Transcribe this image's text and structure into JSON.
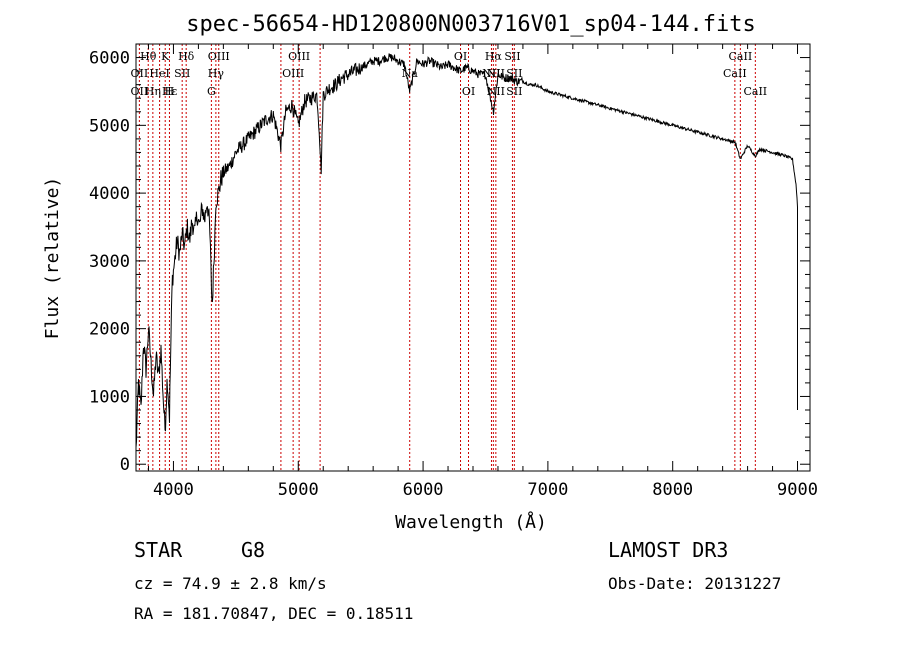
{
  "chart_data": {
    "type": "line",
    "title": "spec-56654-HD120800N003716V01_sp04-144.fits",
    "xlabel": "Wavelength (Å)",
    "ylabel": "Flux (relative)",
    "xlim": [
      3700,
      9100
    ],
    "ylim": [
      -100,
      6200
    ],
    "xticks": [
      4000,
      5000,
      6000,
      7000,
      8000,
      9000
    ],
    "yticks": [
      0,
      1000,
      2000,
      3000,
      4000,
      5000,
      6000
    ],
    "x_minor_step": 200,
    "y_minor_step": 200,
    "series": [
      {
        "name": "flux",
        "x": [
          3700,
          3720,
          3740,
          3760,
          3780,
          3800,
          3820,
          3840,
          3860,
          3880,
          3900,
          3920,
          3933,
          3950,
          3968,
          3990,
          4010,
          4030,
          4050,
          4070,
          4090,
          4110,
          4130,
          4150,
          4170,
          4190,
          4210,
          4230,
          4250,
          4270,
          4290,
          4310,
          4330,
          4340,
          4360,
          4380,
          4400,
          4450,
          4500,
          4550,
          4600,
          4650,
          4700,
          4750,
          4800,
          4861,
          4900,
          4950,
          5000,
          5050,
          5100,
          5150,
          5170,
          5183,
          5200,
          5250,
          5300,
          5350,
          5400,
          5450,
          5500,
          5550,
          5600,
          5650,
          5700,
          5750,
          5800,
          5850,
          5893,
          5950,
          6000,
          6050,
          6100,
          6150,
          6200,
          6250,
          6300,
          6350,
          6400,
          6450,
          6500,
          6563,
          6600,
          6650,
          6700,
          6750,
          6800,
          6850,
          6900,
          6950,
          7000,
          7100,
          7200,
          7300,
          7400,
          7500,
          7600,
          7700,
          7800,
          7900,
          8000,
          8100,
          8200,
          8300,
          8400,
          8500,
          8542,
          8600,
          8662,
          8700,
          8800,
          8900,
          8960,
          8990,
          9000
        ],
        "y": [
          200,
          1200,
          800,
          1800,
          1400,
          2000,
          1500,
          1000,
          1600,
          1300,
          1700,
          900,
          500,
          1300,
          700,
          2700,
          3000,
          3300,
          3100,
          3400,
          3200,
          3500,
          3300,
          3600,
          3400,
          3700,
          3500,
          3800,
          3600,
          3900,
          3500,
          2300,
          3300,
          3900,
          4000,
          4200,
          4300,
          4400,
          4600,
          4700,
          4800,
          4900,
          5000,
          5100,
          5150,
          4700,
          5200,
          5300,
          5000,
          5350,
          5400,
          5450,
          4900,
          4300,
          5450,
          5550,
          5600,
          5700,
          5750,
          5800,
          5850,
          5900,
          5950,
          5950,
          6000,
          6000,
          5950,
          5900,
          5500,
          5950,
          5900,
          5950,
          5900,
          5850,
          5900,
          5850,
          5800,
          5850,
          5800,
          5750,
          5750,
          5200,
          5750,
          5700,
          5700,
          5650,
          5650,
          5600,
          5600,
          5550,
          5500,
          5450,
          5400,
          5350,
          5300,
          5250,
          5200,
          5150,
          5100,
          5050,
          5000,
          4950,
          4900,
          4850,
          4800,
          4750,
          4500,
          4700,
          4550,
          4650,
          4600,
          4550,
          4500,
          4100,
          3800
        ]
      }
    ],
    "line_labels": [
      {
        "text": "Hθ",
        "x": 3798,
        "row": 0
      },
      {
        "text": "K",
        "x": 3934,
        "row": 0
      },
      {
        "text": "Hδ",
        "x": 4102,
        "row": 0
      },
      {
        "text": "OIII",
        "x": 4363,
        "row": 0
      },
      {
        "text": "OIII",
        "x": 5007,
        "row": 0
      },
      {
        "text": "OI",
        "x": 6300,
        "row": 0
      },
      {
        "text": "Hα",
        "x": 6563,
        "row": 0
      },
      {
        "text": "SII",
        "x": 6716,
        "row": 0
      },
      {
        "text": "CaII",
        "x": 8542,
        "row": 0
      },
      {
        "text": "OII",
        "x": 3727,
        "row": 1
      },
      {
        "text": "HeI",
        "x": 3889,
        "row": 1
      },
      {
        "text": "SII",
        "x": 4070,
        "row": 1
      },
      {
        "text": "Hγ",
        "x": 4340,
        "row": 1
      },
      {
        "text": "OIII",
        "x": 4959,
        "row": 1
      },
      {
        "text": "Na",
        "x": 5893,
        "row": 1
      },
      {
        "text": "NII",
        "x": 6548,
        "row": 1
      },
      {
        "text": "NII",
        "x": 6583,
        "row": 1
      },
      {
        "text": "SII",
        "x": 6731,
        "row": 1
      },
      {
        "text": "CaII",
        "x": 8498,
        "row": 1
      },
      {
        "text": "OII",
        "x": 3727,
        "row": 2
      },
      {
        "text": "Hη",
        "x": 3835,
        "row": 2
      },
      {
        "text": "Hε",
        "x": 3970,
        "row": 2
      },
      {
        "text": "H",
        "x": 3968,
        "row": 2
      },
      {
        "text": "G",
        "x": 4304,
        "row": 2
      },
      {
        "text": "OI",
        "x": 6364,
        "row": 2
      },
      {
        "text": "NII",
        "x": 6583,
        "row": 2
      },
      {
        "text": "SII",
        "x": 6731,
        "row": 2
      },
      {
        "text": "CaII",
        "x": 8662,
        "row": 2
      }
    ],
    "ref_lines": [
      3727,
      3798,
      3835,
      3889,
      3934,
      3968,
      4070,
      4102,
      4304,
      4340,
      4363,
      4861,
      4959,
      5007,
      5175,
      5893,
      6300,
      6364,
      6548,
      6563,
      6583,
      6716,
      6731,
      8498,
      8542,
      8662
    ],
    "colors": {
      "spectrum": "#000000",
      "ref_line": "#cc0000",
      "background": "#ffffff"
    }
  },
  "info": {
    "object_class": "STAR",
    "subclass": "G8",
    "survey": "LAMOST DR3",
    "cz": "cz = 74.9 ± 2.8 km/s",
    "obs_date": "Obs-Date: 20131227",
    "coords": "RA = 181.70847, DEC =    0.18511"
  }
}
